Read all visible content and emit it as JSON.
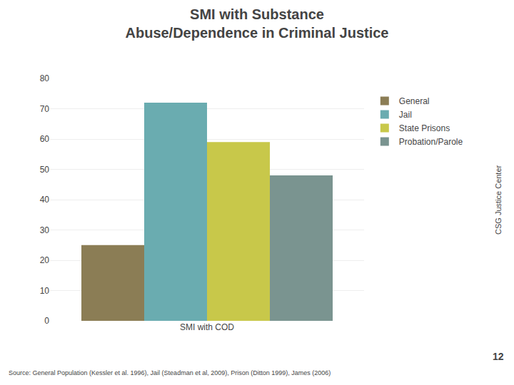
{
  "chart_data": {
    "type": "bar",
    "title": "SMI with Substance\nAbuse/Dependence in Criminal Justice",
    "categories": [
      "SMI with COD"
    ],
    "series": [
      {
        "name": "General",
        "color": "#8b7d55",
        "values": [
          25
        ]
      },
      {
        "name": "Jail",
        "color": "#6aacb0",
        "values": [
          72
        ]
      },
      {
        "name": "State Prisons",
        "color": "#c8c84a",
        "values": [
          59
        ]
      },
      {
        "name": "Probation/Parole",
        "color": "#7a9490",
        "values": [
          48
        ]
      }
    ],
    "ylim": [
      0,
      80
    ],
    "yticks": [
      0,
      10,
      20,
      30,
      40,
      50,
      60,
      70,
      80
    ],
    "grid": true,
    "legend": "right",
    "annotations": [
      "CSG Justice Center",
      "12",
      "Source: General Population (Kessler et al. 1996), Jail (Steadman et al, 2009), Prison (Ditton 1999), James (2006)"
    ]
  }
}
